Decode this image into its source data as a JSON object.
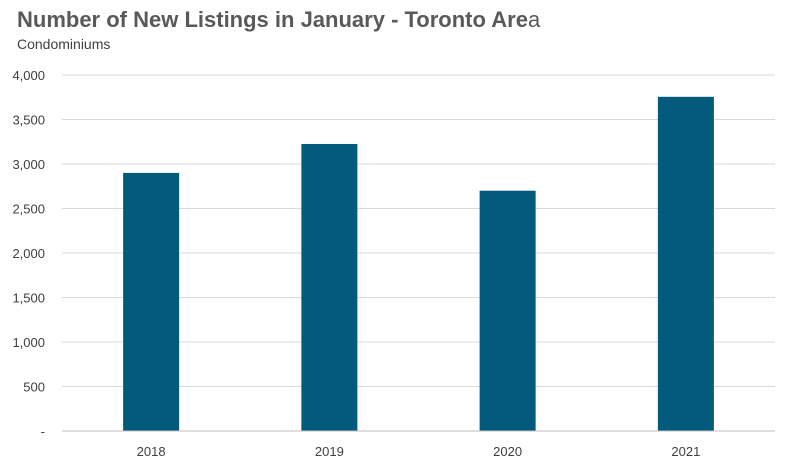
{
  "chart_data": {
    "type": "bar",
    "title_main": "Number of New Listings in January - Toronto Are",
    "title_tail": "a",
    "subtitle": "Condominiums",
    "xlabel": "",
    "ylabel": "",
    "categories": [
      "2018",
      "2019",
      "2020",
      "2021"
    ],
    "values": [
      2900,
      3225,
      2700,
      3755
    ],
    "ylim": [
      0,
      4000
    ],
    "yticks": [
      0,
      500,
      1000,
      1500,
      2000,
      2500,
      3000,
      3500,
      4000
    ],
    "ytick_labels": [
      "-",
      "500",
      "1,000",
      "1,500",
      "2,000",
      "2,500",
      "3,000",
      "3,500",
      "4,000"
    ],
    "grid": true,
    "legend": "none",
    "colors": {
      "bar": "#045a7d",
      "grid": "#d9d9d9",
      "axis": "#bfbfbf"
    }
  }
}
